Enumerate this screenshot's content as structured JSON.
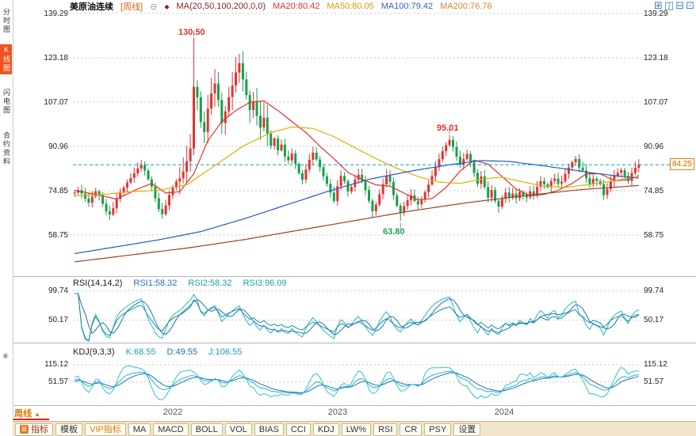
{
  "header": {
    "symbol": "美原油连续",
    "period_tag": "[周线]",
    "ma_settings": "MA(20,50,100,200,0,0)",
    "ma20": "MA20:80.42",
    "ma50": "MA50:80.05",
    "ma100": "MA100:79.42",
    "ma200": "MA200:76.76"
  },
  "layout_icons": [
    "⊞",
    "◫",
    "⊟",
    "⊡"
  ],
  "sidebar": {
    "items": [
      {
        "label": "分时图",
        "active": false
      },
      {
        "label": "K线图",
        "active": true
      },
      {
        "label": "闪电图",
        "active": false
      },
      {
        "label": "合约资料",
        "active": false
      }
    ]
  },
  "price_axis": [
    "139.29",
    "123.18",
    "107.07",
    "90.96",
    "74.85",
    "58.75"
  ],
  "annotations": {
    "peak": "130.50",
    "secondary_high": "95.01",
    "low": "63.80"
  },
  "last_price_tag": "84.25",
  "rsi_panel": {
    "title": "RSI(14,14,2)",
    "rsi1": "RSI1:58.32",
    "rsi2": "RSI2:58.32",
    "rsi3": "RSI3:96.09",
    "axis": [
      "99.74",
      "50.17"
    ]
  },
  "kdj_panel": {
    "title": "KDJ(9,3,3)",
    "k": "K:68.55",
    "d": "D:49.55",
    "j": "J:106.55",
    "axis": [
      "115.12",
      "51.57"
    ]
  },
  "xaxis": {
    "years": [
      "2022",
      "2023",
      "2024"
    ],
    "period": "周线",
    "arrow": "▲"
  },
  "bottom_bar": {
    "tabs": [
      "指标",
      "模板",
      "VIP指标",
      "MA",
      "MACD",
      "BOLL",
      "VOL",
      "BIAS",
      "CCI",
      "KDJ",
      "LW%",
      "RSI",
      "CR",
      "PSY",
      "设置"
    ]
  },
  "colors": {
    "up_candle": "#e23333",
    "down_candle": "#17a04a",
    "ma20": "#e03030",
    "ma50": "#e0b000",
    "ma100": "#2858c8",
    "ma200": "#a04028",
    "grid": "#c9c9c9",
    "last_price_line": "#00a0c0",
    "oscillator_teal": "#28b4c8",
    "oscillator_blue": "#2070c0",
    "accent_orange": "#e07800",
    "active_tab_red": "#f0521e"
  },
  "chart_data": {
    "type": "candlestick",
    "symbol": "美原油连续",
    "period": "weekly",
    "y_axis_values": [
      139.29,
      123.18,
      107.07,
      90.96,
      74.85,
      58.75
    ],
    "last_price": 84.25,
    "annotations": [
      {
        "index": 34,
        "price": 130.5,
        "type": "high"
      },
      {
        "index": 107,
        "price": 95.01,
        "type": "high"
      },
      {
        "index": 93,
        "price": 63.8,
        "type": "low"
      }
    ],
    "closes": [
      74.2,
      75.1,
      73.8,
      72.0,
      70.5,
      72.8,
      74.6,
      73.2,
      70.1,
      67.3,
      66.2,
      68.5,
      71.9,
      74.4,
      76.0,
      77.8,
      79.5,
      81.2,
      83.0,
      84.1,
      82.2,
      79.0,
      76.3,
      72.1,
      68.2,
      66.3,
      69.5,
      73.3,
      76.1,
      78.2,
      79.4,
      81.8,
      85.6,
      90.2,
      112.6,
      108.8,
      99.8,
      96.2,
      104.7,
      110.2,
      113.8,
      107.8,
      99.4,
      103.7,
      108.9,
      113.1,
      117.8,
      121.2,
      115.3,
      109.6,
      104.2,
      107.3,
      102.1,
      97.8,
      101.4,
      95.6,
      91.2,
      93.8,
      89.5,
      91.6,
      87.3,
      85.9,
      88.4,
      84.6,
      81.2,
      78.9,
      82.6,
      86.1,
      88.7,
      86.2,
      83.4,
      80.1,
      77.3,
      74.2,
      71.1,
      76.5,
      80.2,
      78.3,
      74.6,
      76.2,
      78.9,
      80.7,
      78.4,
      75.1,
      71.2,
      67.4,
      69.8,
      73.6,
      77.2,
      80.3,
      78.1,
      73.2,
      69.4,
      66.9,
      69.3,
      71.4,
      73.2,
      71.1,
      69.9,
      71.8,
      74.3,
      77.1,
      80.2,
      83.4,
      86.3,
      89.2,
      91.4,
      93.3,
      90.8,
      87.2,
      84.3,
      86.4,
      88.2,
      85.1,
      81.3,
      77.4,
      80.1,
      76.2,
      72.3,
      75.1,
      71.2,
      69.1,
      71.9,
      74.2,
      72.3,
      73.8,
      72.1,
      74.4,
      73.2,
      72.4,
      74.6,
      73.4,
      76.2,
      78.3,
      77.2,
      76.1,
      78.4,
      79.3,
      77.4,
      78.2,
      81.0,
      83.3,
      85.2,
      86.4,
      83.3,
      82.2,
      79.4,
      77.3,
      79.2,
      78.3,
      77.2,
      73.3,
      75.5,
      78.2,
      80.3,
      81.4,
      82.3,
      80.2,
      78.4,
      81.3,
      83.2,
      84.25
    ],
    "wick_overrides": {
      "10": [
        null,
        64.3
      ],
      "25": [
        null,
        64.6
      ],
      "34": [
        130.5,
        null
      ],
      "47": [
        124.6,
        null
      ],
      "85": [
        null,
        65.0
      ],
      "93": [
        null,
        63.8
      ],
      "107": [
        95.01,
        null
      ],
      "121": [
        null,
        66.9
      ]
    },
    "ma_lines": [
      {
        "name": "MA20",
        "color": "#e03030",
        "points": [
          [
            0,
            75
          ],
          [
            6,
            73.5
          ],
          [
            12,
            71.8
          ],
          [
            18,
            75.5
          ],
          [
            22,
            77.5
          ],
          [
            26,
            74
          ],
          [
            30,
            74.5
          ],
          [
            34,
            81
          ],
          [
            38,
            93
          ],
          [
            42,
            100
          ],
          [
            46,
            104
          ],
          [
            50,
            107
          ],
          [
            54,
            107.5
          ],
          [
            58,
            104
          ],
          [
            62,
            100
          ],
          [
            66,
            96
          ],
          [
            70,
            91
          ],
          [
            74,
            86.5
          ],
          [
            78,
            81.5
          ],
          [
            82,
            79
          ],
          [
            86,
            77
          ],
          [
            90,
            76.5
          ],
          [
            94,
            74
          ],
          [
            98,
            71.5
          ],
          [
            102,
            72
          ],
          [
            106,
            76
          ],
          [
            110,
            82
          ],
          [
            114,
            86
          ],
          [
            118,
            84.5
          ],
          [
            122,
            80
          ],
          [
            126,
            75.5
          ],
          [
            130,
            73
          ],
          [
            134,
            73.5
          ],
          [
            138,
            75
          ],
          [
            142,
            77.5
          ],
          [
            146,
            81
          ],
          [
            150,
            81
          ],
          [
            154,
            78.5
          ],
          [
            158,
            78.8
          ],
          [
            161,
            80.42
          ]
        ]
      },
      {
        "name": "MA50",
        "color": "#e0b000",
        "points": [
          [
            0,
            73
          ],
          [
            8,
            73.5
          ],
          [
            16,
            74.5
          ],
          [
            24,
            75
          ],
          [
            32,
            77
          ],
          [
            40,
            84
          ],
          [
            48,
            91
          ],
          [
            56,
            96
          ],
          [
            62,
            98
          ],
          [
            68,
            97.5
          ],
          [
            74,
            94.5
          ],
          [
            80,
            90.5
          ],
          [
            86,
            86.5
          ],
          [
            92,
            83
          ],
          [
            98,
            80
          ],
          [
            104,
            78
          ],
          [
            110,
            77.5
          ],
          [
            116,
            79
          ],
          [
            122,
            79.8
          ],
          [
            128,
            78
          ],
          [
            134,
            76.5
          ],
          [
            140,
            76
          ],
          [
            146,
            77
          ],
          [
            152,
            78
          ],
          [
            158,
            79.5
          ],
          [
            161,
            80.05
          ]
        ]
      },
      {
        "name": "MA100",
        "color": "#2858c8",
        "points": [
          [
            0,
            52
          ],
          [
            12,
            54.5
          ],
          [
            24,
            57
          ],
          [
            36,
            60
          ],
          [
            48,
            64.5
          ],
          [
            60,
            69.5
          ],
          [
            72,
            74.5
          ],
          [
            84,
            79
          ],
          [
            96,
            82
          ],
          [
            108,
            84.5
          ],
          [
            116,
            85.8
          ],
          [
            124,
            85.5
          ],
          [
            132,
            84.2
          ],
          [
            140,
            82.8
          ],
          [
            148,
            81.3
          ],
          [
            155,
            80.2
          ],
          [
            161,
            79.42
          ]
        ]
      },
      {
        "name": "MA200",
        "color": "#a04028",
        "points": [
          [
            0,
            49
          ],
          [
            16,
            51.5
          ],
          [
            32,
            54
          ],
          [
            48,
            57
          ],
          [
            64,
            60.5
          ],
          [
            80,
            64
          ],
          [
            96,
            67.5
          ],
          [
            112,
            70.5
          ],
          [
            128,
            73
          ],
          [
            144,
            75.2
          ],
          [
            161,
            76.76
          ]
        ]
      }
    ],
    "indicators": {
      "rsi": {
        "label": "RSI(14,14,2)",
        "shown_values": [
          58.32,
          58.32,
          96.09
        ],
        "axis": [
          99.74,
          50.17
        ]
      },
      "kdj": {
        "label": "KDJ(9,3,3)",
        "shown_values": [
          68.55,
          49.55,
          106.55
        ],
        "axis": [
          115.12,
          51.57
        ]
      }
    }
  }
}
